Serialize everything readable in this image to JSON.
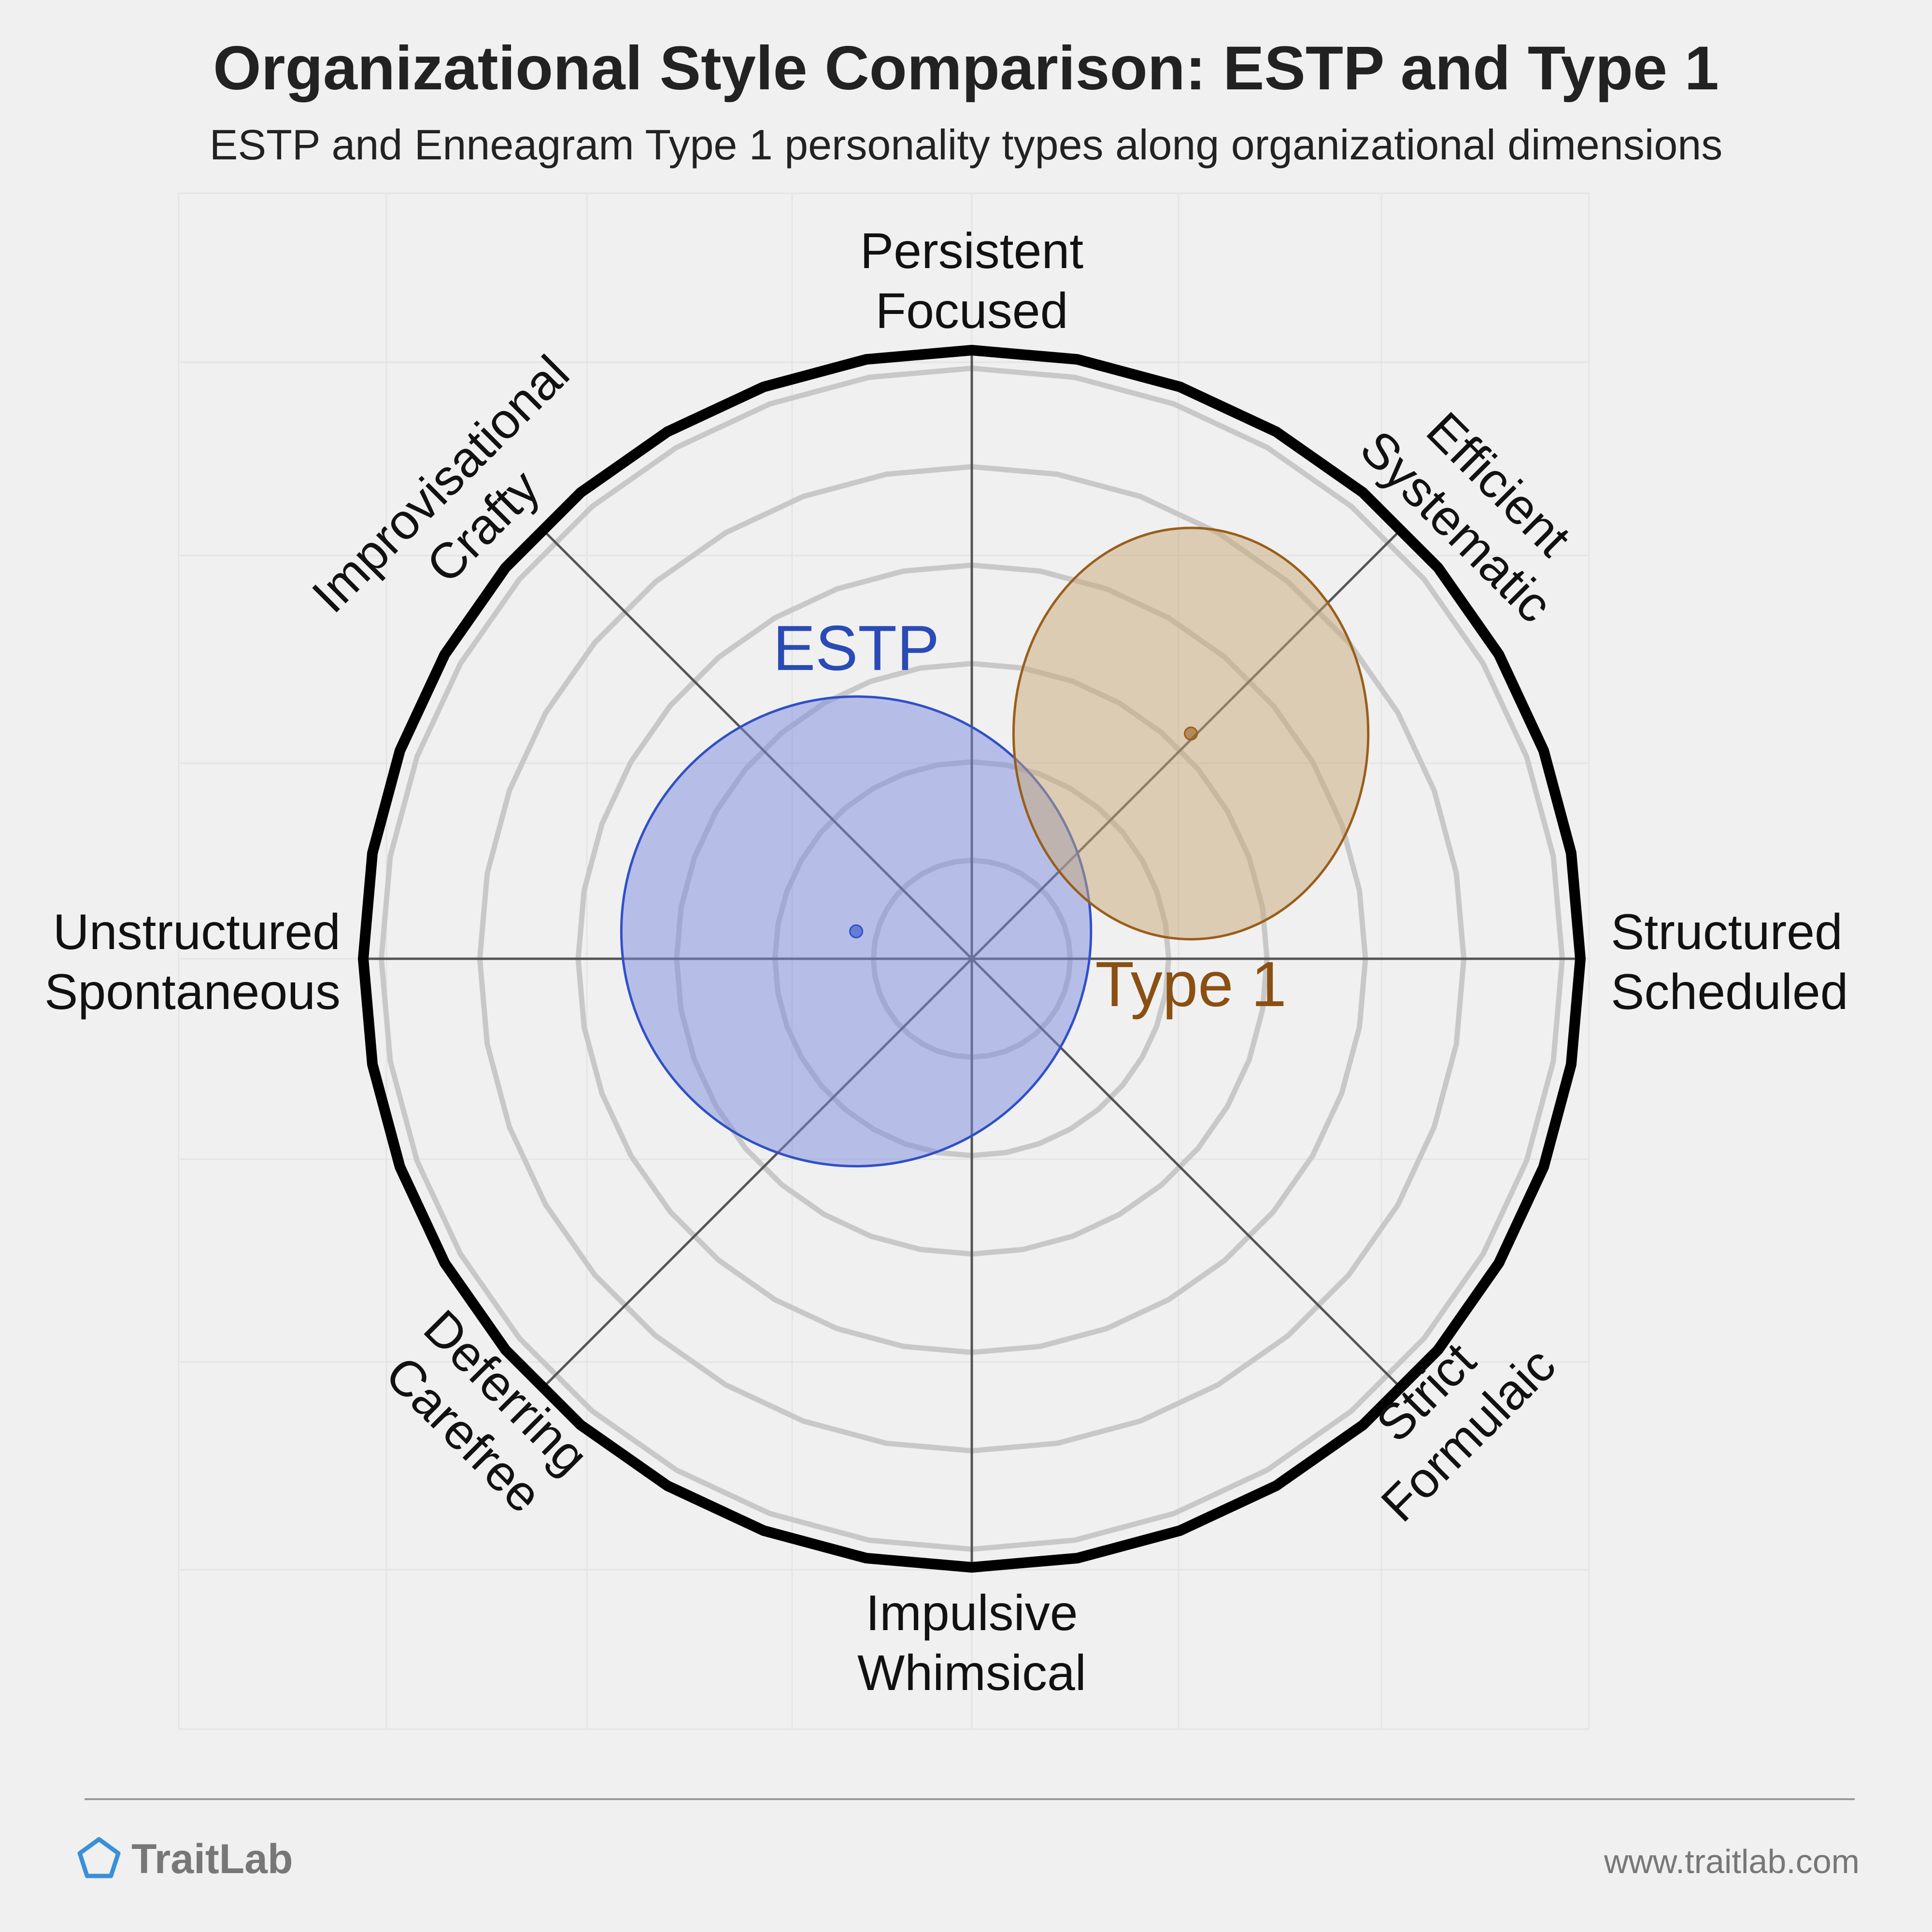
{
  "title": "Organizational Style Comparison: ESTP and Type 1",
  "subtitle": "ESTP and Enneagram Type 1 personality types along organizational dimensions",
  "colors": {
    "background": "#f0f0f0",
    "grid_ring": "#c8c8c8",
    "outer_ring": "#000000",
    "axis_line": "#555555",
    "estp_fill": "#7b8ce0",
    "estp_stroke": "#3050c8",
    "estp_label": "#2a4ab5",
    "type1_fill": "#c8a878",
    "type1_stroke": "#9a5e1a",
    "type1_label": "#8a4f12",
    "logo": "#3a8fd8",
    "footer_text": "#777777"
  },
  "chart_data": {
    "type": "scatter",
    "chart_kind": "polar-circular",
    "axes": [
      {
        "name": "persistent-focused",
        "label": [
          "Persistent",
          "Focused"
        ]
      },
      {
        "name": "efficient-systematic",
        "label": [
          "Efficient",
          "Systematic"
        ]
      },
      {
        "name": "structured-scheduled",
        "label": [
          "Structured",
          "Scheduled"
        ]
      },
      {
        "name": "strict-formulaic",
        "label": [
          "Strict",
          "Formulaic"
        ]
      },
      {
        "name": "impulsive-whimsical",
        "label": [
          "Impulsive",
          "Whimsical"
        ]
      },
      {
        "name": "deferring-carefree",
        "label": [
          "Deferring",
          "Carefree"
        ]
      },
      {
        "name": "unstructured-spontaneous",
        "label": [
          "Unstructured",
          "Spontaneous"
        ]
      },
      {
        "name": "improvisational-crafty",
        "label": [
          "Improvisational",
          "Crafty"
        ]
      }
    ],
    "radius_range": [
      0,
      1
    ],
    "grid_rings": 6,
    "series": [
      {
        "name": "ESTP",
        "center_x": -0.19,
        "center_y": 0.045,
        "spread": 0.37
      },
      {
        "name": "Type 1",
        "center_x": 0.36,
        "center_y": 0.37,
        "spread": 0.32
      }
    ]
  },
  "footer": {
    "brand": "TraitLab",
    "url": "www.traitlab.com"
  }
}
